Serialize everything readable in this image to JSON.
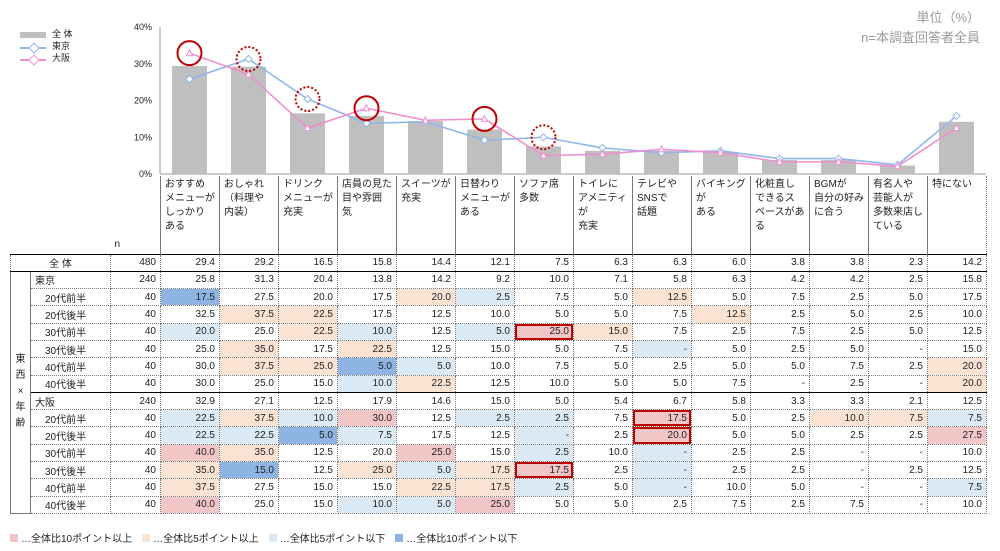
{
  "unit_line1": "単位（%）",
  "unit_line2": "n=本調査回答者全員",
  "legend": {
    "total": "全 体",
    "tokyo": "東京",
    "osaka": "大阪"
  },
  "colors": {
    "bar": "#bfbfbf",
    "tokyo": "#8fb7e8",
    "osaka": "#ef8fd0",
    "circle": "#c00000",
    "pos10": "#f2c6c6",
    "pos5": "#fbe3d4",
    "neg5": "#dbeaf5",
    "neg10": "#8db4e2"
  },
  "chart_data": {
    "type": "bar",
    "ylim": [
      0,
      40
    ],
    "y_ticks": [
      "0%",
      "10%",
      "20%",
      "30%",
      "40%"
    ],
    "y_tick_values": [
      0,
      10,
      20,
      30,
      40
    ],
    "categories": [
      "おすすめメニューがしっかりある",
      "おしゃれ（料理や内装）",
      "ドリンクメニューが充実",
      "店員の見た目や雰囲気",
      "スイーツが充実",
      "日替わりメニューがある",
      "ソファ席多数",
      "トイレにアメニティが充実",
      "テレビやSNSで話題",
      "バイキングがある",
      "化粧直しできるスペースがある",
      "BGMが自分の好みに合う",
      "有名人や芸能人が多数来店している",
      "特にない"
    ],
    "series": [
      {
        "name": "全 体",
        "kind": "bar",
        "values": [
          29.4,
          29.2,
          16.5,
          15.8,
          14.4,
          12.1,
          7.5,
          6.3,
          6.3,
          6.0,
          3.8,
          3.8,
          2.3,
          14.2
        ]
      },
      {
        "name": "東京",
        "kind": "line",
        "values": [
          25.8,
          31.3,
          20.4,
          13.8,
          14.2,
          9.2,
          10.0,
          7.1,
          5.8,
          6.3,
          4.2,
          4.2,
          2.5,
          15.8
        ]
      },
      {
        "name": "大阪",
        "kind": "line",
        "values": [
          32.9,
          27.1,
          12.5,
          17.9,
          14.6,
          15.0,
          5.0,
          5.4,
          6.7,
          5.8,
          3.3,
          3.3,
          2.1,
          12.5
        ]
      }
    ],
    "circles": [
      {
        "index": 0,
        "series": "大阪",
        "style": "solid"
      },
      {
        "index": 1,
        "series": "東京",
        "style": "dotted"
      },
      {
        "index": 2,
        "series": "東京",
        "style": "dotted"
      },
      {
        "index": 3,
        "series": "大阪",
        "style": "solid"
      },
      {
        "index": 5,
        "series": "大阪",
        "style": "solid"
      },
      {
        "index": 6,
        "series": "東京",
        "style": "dotted"
      }
    ]
  },
  "table": {
    "header_lines": [
      [
        "おすすめ",
        "メニューが",
        "しっかり",
        "ある"
      ],
      [
        "おしゃれ",
        "（料理や",
        "内装）"
      ],
      [
        "ドリンク",
        "メニューが",
        "充実"
      ],
      [
        "店員の見た",
        "目や雰囲",
        "気"
      ],
      [
        "スイーツが",
        "充実"
      ],
      [
        "日替わり",
        "メニューが",
        "ある"
      ],
      [
        "ソファ席",
        "多数"
      ],
      [
        "トイレに",
        "アメニティが",
        "充実"
      ],
      [
        "テレビや",
        "SNSで",
        "話題"
      ],
      [
        "バイキングが",
        "ある"
      ],
      [
        "化粧直し",
        "できるス",
        "ペースがあ",
        "る"
      ],
      [
        "BGMが",
        "自分の好み",
        "に合う"
      ],
      [
        "有名人や",
        "芸能人が",
        "多数来店し",
        "ている"
      ],
      [
        "特にない"
      ]
    ],
    "n_label": "n",
    "side_label": [
      "東",
      "西",
      "×",
      "年",
      "齢"
    ],
    "rows": [
      {
        "label": "全 体",
        "n": "480",
        "type": "total",
        "values": [
          "29.4",
          "29.2",
          "16.5",
          "15.8",
          "14.4",
          "12.1",
          "7.5",
          "6.3",
          "6.3",
          "6.0",
          "3.8",
          "3.8",
          "2.3",
          "14.2"
        ],
        "shade": [
          0,
          0,
          0,
          0,
          0,
          0,
          0,
          0,
          0,
          0,
          0,
          0,
          0,
          0
        ]
      },
      {
        "label": "東京",
        "n": "240",
        "type": "group",
        "values": [
          "25.8",
          "31.3",
          "20.4",
          "13.8",
          "14.2",
          "9.2",
          "10.0",
          "7.1",
          "5.8",
          "6.3",
          "4.2",
          "4.2",
          "2.5",
          "15.8"
        ],
        "shade": [
          0,
          0,
          0,
          0,
          0,
          0,
          0,
          0,
          0,
          0,
          0,
          0,
          0,
          0
        ]
      },
      {
        "label": "20代前半",
        "n": "40",
        "type": "sub",
        "values": [
          "17.5",
          "27.5",
          "20.0",
          "17.5",
          "20.0",
          "2.5",
          "7.5",
          "5.0",
          "12.5",
          "5.0",
          "7.5",
          "2.5",
          "5.0",
          "17.5"
        ],
        "shade": [
          -2,
          0,
          0,
          0,
          1,
          -1,
          0,
          0,
          1,
          0,
          0,
          0,
          0,
          0
        ]
      },
      {
        "label": "20代後半",
        "n": "40",
        "type": "sub",
        "values": [
          "32.5",
          "37.5",
          "22.5",
          "17.5",
          "12.5",
          "10.0",
          "5.0",
          "5.0",
          "7.5",
          "12.5",
          "2.5",
          "5.0",
          "2.5",
          "10.0"
        ],
        "shade": [
          0,
          1,
          1,
          0,
          0,
          0,
          0,
          0,
          0,
          1,
          0,
          0,
          0,
          0
        ]
      },
      {
        "label": "30代前半",
        "n": "40",
        "type": "sub",
        "values": [
          "20.0",
          "25.0",
          "22.5",
          "10.0",
          "12.5",
          "5.0",
          "25.0",
          "15.0",
          "7.5",
          "2.5",
          "7.5",
          "2.5",
          "5.0",
          "12.5"
        ],
        "shade": [
          -1,
          0,
          1,
          -1,
          0,
          -1,
          2,
          1,
          0,
          0,
          0,
          0,
          0,
          0
        ],
        "hl": [
          6
        ]
      },
      {
        "label": "30代後半",
        "n": "40",
        "type": "sub",
        "values": [
          "25.0",
          "35.0",
          "17.5",
          "22.5",
          "12.5",
          "15.0",
          "5.0",
          "7.5",
          "-",
          "5.0",
          "2.5",
          "5.0",
          "-",
          "15.0"
        ],
        "shade": [
          0,
          1,
          0,
          1,
          0,
          0,
          0,
          0,
          -1,
          0,
          0,
          0,
          0,
          0
        ]
      },
      {
        "label": "40代前半",
        "n": "40",
        "type": "sub",
        "values": [
          "30.0",
          "37.5",
          "25.0",
          "5.0",
          "5.0",
          "10.0",
          "7.5",
          "5.0",
          "2.5",
          "5.0",
          "5.0",
          "7.5",
          "2.5",
          "20.0"
        ],
        "shade": [
          0,
          1,
          1,
          -2,
          -1,
          0,
          0,
          0,
          0,
          0,
          0,
          0,
          0,
          1
        ]
      },
      {
        "label": "40代後半",
        "n": "40",
        "type": "sub",
        "values": [
          "30.0",
          "25.0",
          "15.0",
          "10.0",
          "22.5",
          "12.5",
          "10.0",
          "5.0",
          "5.0",
          "7.5",
          "-",
          "2.5",
          "-",
          "20.0"
        ],
        "shade": [
          0,
          0,
          0,
          -1,
          1,
          0,
          0,
          0,
          0,
          0,
          0,
          0,
          0,
          1
        ]
      },
      {
        "label": "大阪",
        "n": "240",
        "type": "group",
        "values": [
          "32.9",
          "27.1",
          "12.5",
          "17.9",
          "14.6",
          "15.0",
          "5.0",
          "5.4",
          "6.7",
          "5.8",
          "3.3",
          "3.3",
          "2.1",
          "12.5"
        ],
        "shade": [
          0,
          0,
          0,
          0,
          0,
          0,
          0,
          0,
          0,
          0,
          0,
          0,
          0,
          0
        ]
      },
      {
        "label": "20代前半",
        "n": "40",
        "type": "sub",
        "values": [
          "22.5",
          "37.5",
          "10.0",
          "30.0",
          "12.5",
          "2.5",
          "2.5",
          "7.5",
          "17.5",
          "5.0",
          "2.5",
          "10.0",
          "7.5",
          "7.5"
        ],
        "shade": [
          -1,
          1,
          -1,
          2,
          0,
          -1,
          -1,
          0,
          2,
          0,
          0,
          1,
          1,
          -1
        ],
        "hl": [
          8
        ]
      },
      {
        "label": "20代後半",
        "n": "40",
        "type": "sub",
        "values": [
          "22.5",
          "22.5",
          "5.0",
          "7.5",
          "17.5",
          "12.5",
          "-",
          "2.5",
          "20.0",
          "5.0",
          "5.0",
          "2.5",
          "2.5",
          "27.5"
        ],
        "shade": [
          -1,
          -1,
          -2,
          -1,
          0,
          0,
          -1,
          0,
          2,
          0,
          0,
          0,
          0,
          2
        ],
        "hl": [
          8
        ]
      },
      {
        "label": "30代前半",
        "n": "40",
        "type": "sub",
        "values": [
          "40.0",
          "35.0",
          "12.5",
          "20.0",
          "25.0",
          "15.0",
          "2.5",
          "10.0",
          "-",
          "2.5",
          "2.5",
          "-",
          "-",
          "10.0"
        ],
        "shade": [
          2,
          1,
          0,
          0,
          2,
          0,
          -1,
          0,
          -1,
          0,
          0,
          0,
          0,
          0
        ]
      },
      {
        "label": "30代後半",
        "n": "40",
        "type": "sub",
        "values": [
          "35.0",
          "15.0",
          "12.5",
          "25.0",
          "5.0",
          "17.5",
          "17.5",
          "2.5",
          "-",
          "2.5",
          "2.5",
          "-",
          "2.5",
          "12.5"
        ],
        "shade": [
          1,
          -2,
          0,
          1,
          -1,
          1,
          2,
          0,
          -1,
          0,
          0,
          0,
          0,
          0
        ],
        "hl": [
          6
        ]
      },
      {
        "label": "40代前半",
        "n": "40",
        "type": "sub",
        "values": [
          "37.5",
          "27.5",
          "15.0",
          "15.0",
          "22.5",
          "17.5",
          "2.5",
          "5.0",
          "-",
          "10.0",
          "5.0",
          "-",
          "-",
          "7.5"
        ],
        "shade": [
          1,
          0,
          0,
          0,
          1,
          1,
          -1,
          0,
          -1,
          0,
          0,
          0,
          0,
          -1
        ]
      },
      {
        "label": "40代後半",
        "n": "40",
        "type": "sub",
        "values": [
          "40.0",
          "25.0",
          "15.0",
          "10.0",
          "5.0",
          "25.0",
          "5.0",
          "5.0",
          "2.5",
          "7.5",
          "2.5",
          "7.5",
          "-",
          "10.0"
        ],
        "shade": [
          2,
          0,
          0,
          -1,
          -1,
          2,
          0,
          0,
          0,
          0,
          0,
          0,
          0,
          0
        ]
      }
    ]
  },
  "footnote": [
    {
      "label": "…全体比10ポイント以上",
      "color": "#f2c6c6"
    },
    {
      "label": "…全体比5ポイント以上",
      "color": "#fbe3d4"
    },
    {
      "label": "…全体比5ポイント以下",
      "color": "#dbeaf5"
    },
    {
      "label": "…全体比10ポイント以下",
      "color": "#8db4e2"
    }
  ]
}
